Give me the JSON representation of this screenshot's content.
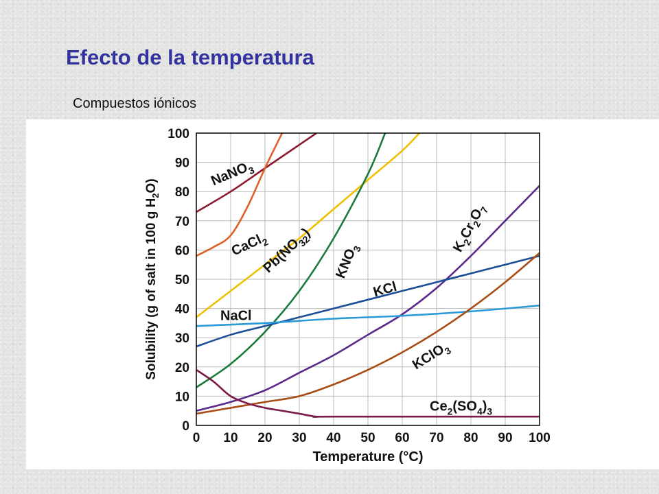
{
  "slide": {
    "title": "Efecto de la temperatura",
    "subtitle": "Compuestos iónicos"
  },
  "chart_data": {
    "type": "line",
    "title": "",
    "xlabel": "Temperature (°C)",
    "ylabel": "Solubility (g of salt in 100 g H2O)",
    "xlim": [
      0,
      100
    ],
    "ylim": [
      0,
      100
    ],
    "xticks": [
      0,
      10,
      20,
      30,
      40,
      50,
      60,
      70,
      80,
      90,
      100
    ],
    "yticks": [
      0,
      10,
      20,
      30,
      40,
      50,
      60,
      70,
      80,
      90,
      100
    ],
    "grid": true,
    "series": [
      {
        "name": "NaNO3",
        "label_main": "NaNO",
        "label_sub": "3",
        "color": "#8b1a2e",
        "points": [
          [
            0,
            73
          ],
          [
            10,
            80
          ],
          [
            20,
            88
          ],
          [
            30,
            96
          ],
          [
            35,
            100
          ]
        ]
      },
      {
        "name": "CaCl2",
        "label_main": "CaCl",
        "label_sub": "2",
        "color": "#e0602a",
        "points": [
          [
            0,
            58
          ],
          [
            5,
            61
          ],
          [
            10,
            65
          ],
          [
            15,
            75
          ],
          [
            20,
            88
          ],
          [
            25,
            100
          ]
        ]
      },
      {
        "name": "Pb(NO3)2",
        "label_main": "Pb(NO",
        "label_sub": "3",
        "label_end": ")",
        "label_sub2": "2",
        "color": "#f0c000",
        "points": [
          [
            0,
            37
          ],
          [
            10,
            46
          ],
          [
            20,
            55
          ],
          [
            30,
            64
          ],
          [
            40,
            74
          ],
          [
            50,
            84
          ],
          [
            60,
            94
          ],
          [
            65,
            100
          ]
        ]
      },
      {
        "name": "KNO3",
        "label_main": "KNO",
        "label_sub": "3",
        "color": "#1a7a3a",
        "points": [
          [
            0,
            13
          ],
          [
            10,
            21
          ],
          [
            20,
            32
          ],
          [
            30,
            46
          ],
          [
            40,
            64
          ],
          [
            50,
            86
          ],
          [
            55,
            100
          ]
        ]
      },
      {
        "name": "K2Cr2O7",
        "label_main": "K",
        "label_sub": "2",
        "label_mid": "Cr",
        "label_sub2": "2",
        "label_end": "O",
        "label_sub3": "7",
        "color": "#5a2a8a",
        "points": [
          [
            0,
            5
          ],
          [
            10,
            8
          ],
          [
            20,
            12
          ],
          [
            30,
            18
          ],
          [
            40,
            24
          ],
          [
            50,
            31
          ],
          [
            60,
            38
          ],
          [
            70,
            47
          ],
          [
            80,
            58
          ],
          [
            90,
            70
          ],
          [
            100,
            82
          ]
        ]
      },
      {
        "name": "KCl",
        "label_main": "KCl",
        "color": "#1a4e96",
        "points": [
          [
            0,
            27
          ],
          [
            10,
            31
          ],
          [
            20,
            34
          ],
          [
            30,
            37
          ],
          [
            40,
            40
          ],
          [
            50,
            43
          ],
          [
            60,
            46
          ],
          [
            70,
            49
          ],
          [
            80,
            52
          ],
          [
            90,
            55
          ],
          [
            100,
            58
          ]
        ]
      },
      {
        "name": "NaCl",
        "label_main": "NaCl",
        "color": "#2a9ad6",
        "points": [
          [
            0,
            34
          ],
          [
            20,
            35
          ],
          [
            40,
            36.5
          ],
          [
            60,
            37.5
          ],
          [
            80,
            39
          ],
          [
            100,
            41
          ]
        ]
      },
      {
        "name": "KClO3",
        "label_main": "KClO",
        "label_sub": "3",
        "color": "#a84c14",
        "points": [
          [
            0,
            4
          ],
          [
            10,
            6
          ],
          [
            20,
            8
          ],
          [
            30,
            10
          ],
          [
            40,
            14
          ],
          [
            50,
            19
          ],
          [
            60,
            25
          ],
          [
            70,
            32
          ],
          [
            80,
            40
          ],
          [
            90,
            49
          ],
          [
            100,
            59
          ]
        ]
      },
      {
        "name": "Ce2(SO4)3",
        "label_main": "Ce",
        "label_sub": "2",
        "label_mid": "(SO",
        "label_sub2": "4",
        "label_end": ")",
        "label_sub3": "3",
        "color": "#7a1a4a",
        "points": [
          [
            0,
            19
          ],
          [
            5,
            15
          ],
          [
            10,
            10
          ],
          [
            15,
            7.5
          ],
          [
            20,
            6
          ],
          [
            25,
            5
          ],
          [
            30,
            4
          ],
          [
            35,
            3
          ],
          [
            40,
            3
          ],
          [
            100,
            3
          ]
        ]
      }
    ]
  }
}
